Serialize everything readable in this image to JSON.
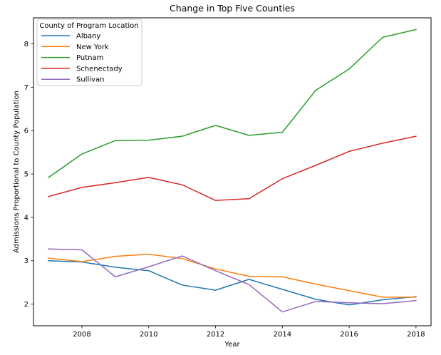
{
  "chart_data": {
    "type": "line",
    "title": "Change in Top Five Counties",
    "xlabel": "Year",
    "ylabel": "Admissions Proportional to County Population",
    "xlim": [
      2006.55,
      2018.45
    ],
    "ylim": [
      1.5,
      8.6
    ],
    "xticks": [
      2008,
      2010,
      2012,
      2014,
      2016,
      2018
    ],
    "yticks": [
      2,
      3,
      4,
      5,
      6,
      7,
      8
    ],
    "legend": {
      "title": "County of Program Location",
      "position": "top-left"
    },
    "x": [
      2007,
      2008,
      2009,
      2010,
      2011,
      2012,
      2013,
      2014,
      2015,
      2016,
      2017,
      2018
    ],
    "series": [
      {
        "name": "Albany",
        "color": "#1f77b4",
        "values": [
          3.0,
          2.97,
          2.85,
          2.77,
          2.44,
          2.32,
          2.57,
          2.34,
          2.11,
          1.98,
          2.1,
          2.17
        ]
      },
      {
        "name": "New York",
        "color": "#ff7f0e",
        "values": [
          3.06,
          2.98,
          3.1,
          3.15,
          3.05,
          2.81,
          2.64,
          2.63,
          2.46,
          2.31,
          2.16,
          2.16
        ]
      },
      {
        "name": "Putnam",
        "color": "#2ca02c",
        "values": [
          4.92,
          5.46,
          5.77,
          5.78,
          5.87,
          6.12,
          5.89,
          5.96,
          6.93,
          7.42,
          8.15,
          8.33
        ]
      },
      {
        "name": "Schenectady",
        "color": "#d62728",
        "values": [
          4.48,
          4.69,
          4.8,
          4.92,
          4.75,
          4.39,
          4.43,
          4.89,
          5.2,
          5.52,
          5.71,
          5.87
        ]
      },
      {
        "name": "Sullivan",
        "color": "#9467bd",
        "values": [
          3.27,
          3.25,
          2.63,
          2.86,
          3.11,
          2.77,
          2.45,
          1.82,
          2.06,
          2.03,
          2.01,
          2.08
        ]
      }
    ]
  }
}
